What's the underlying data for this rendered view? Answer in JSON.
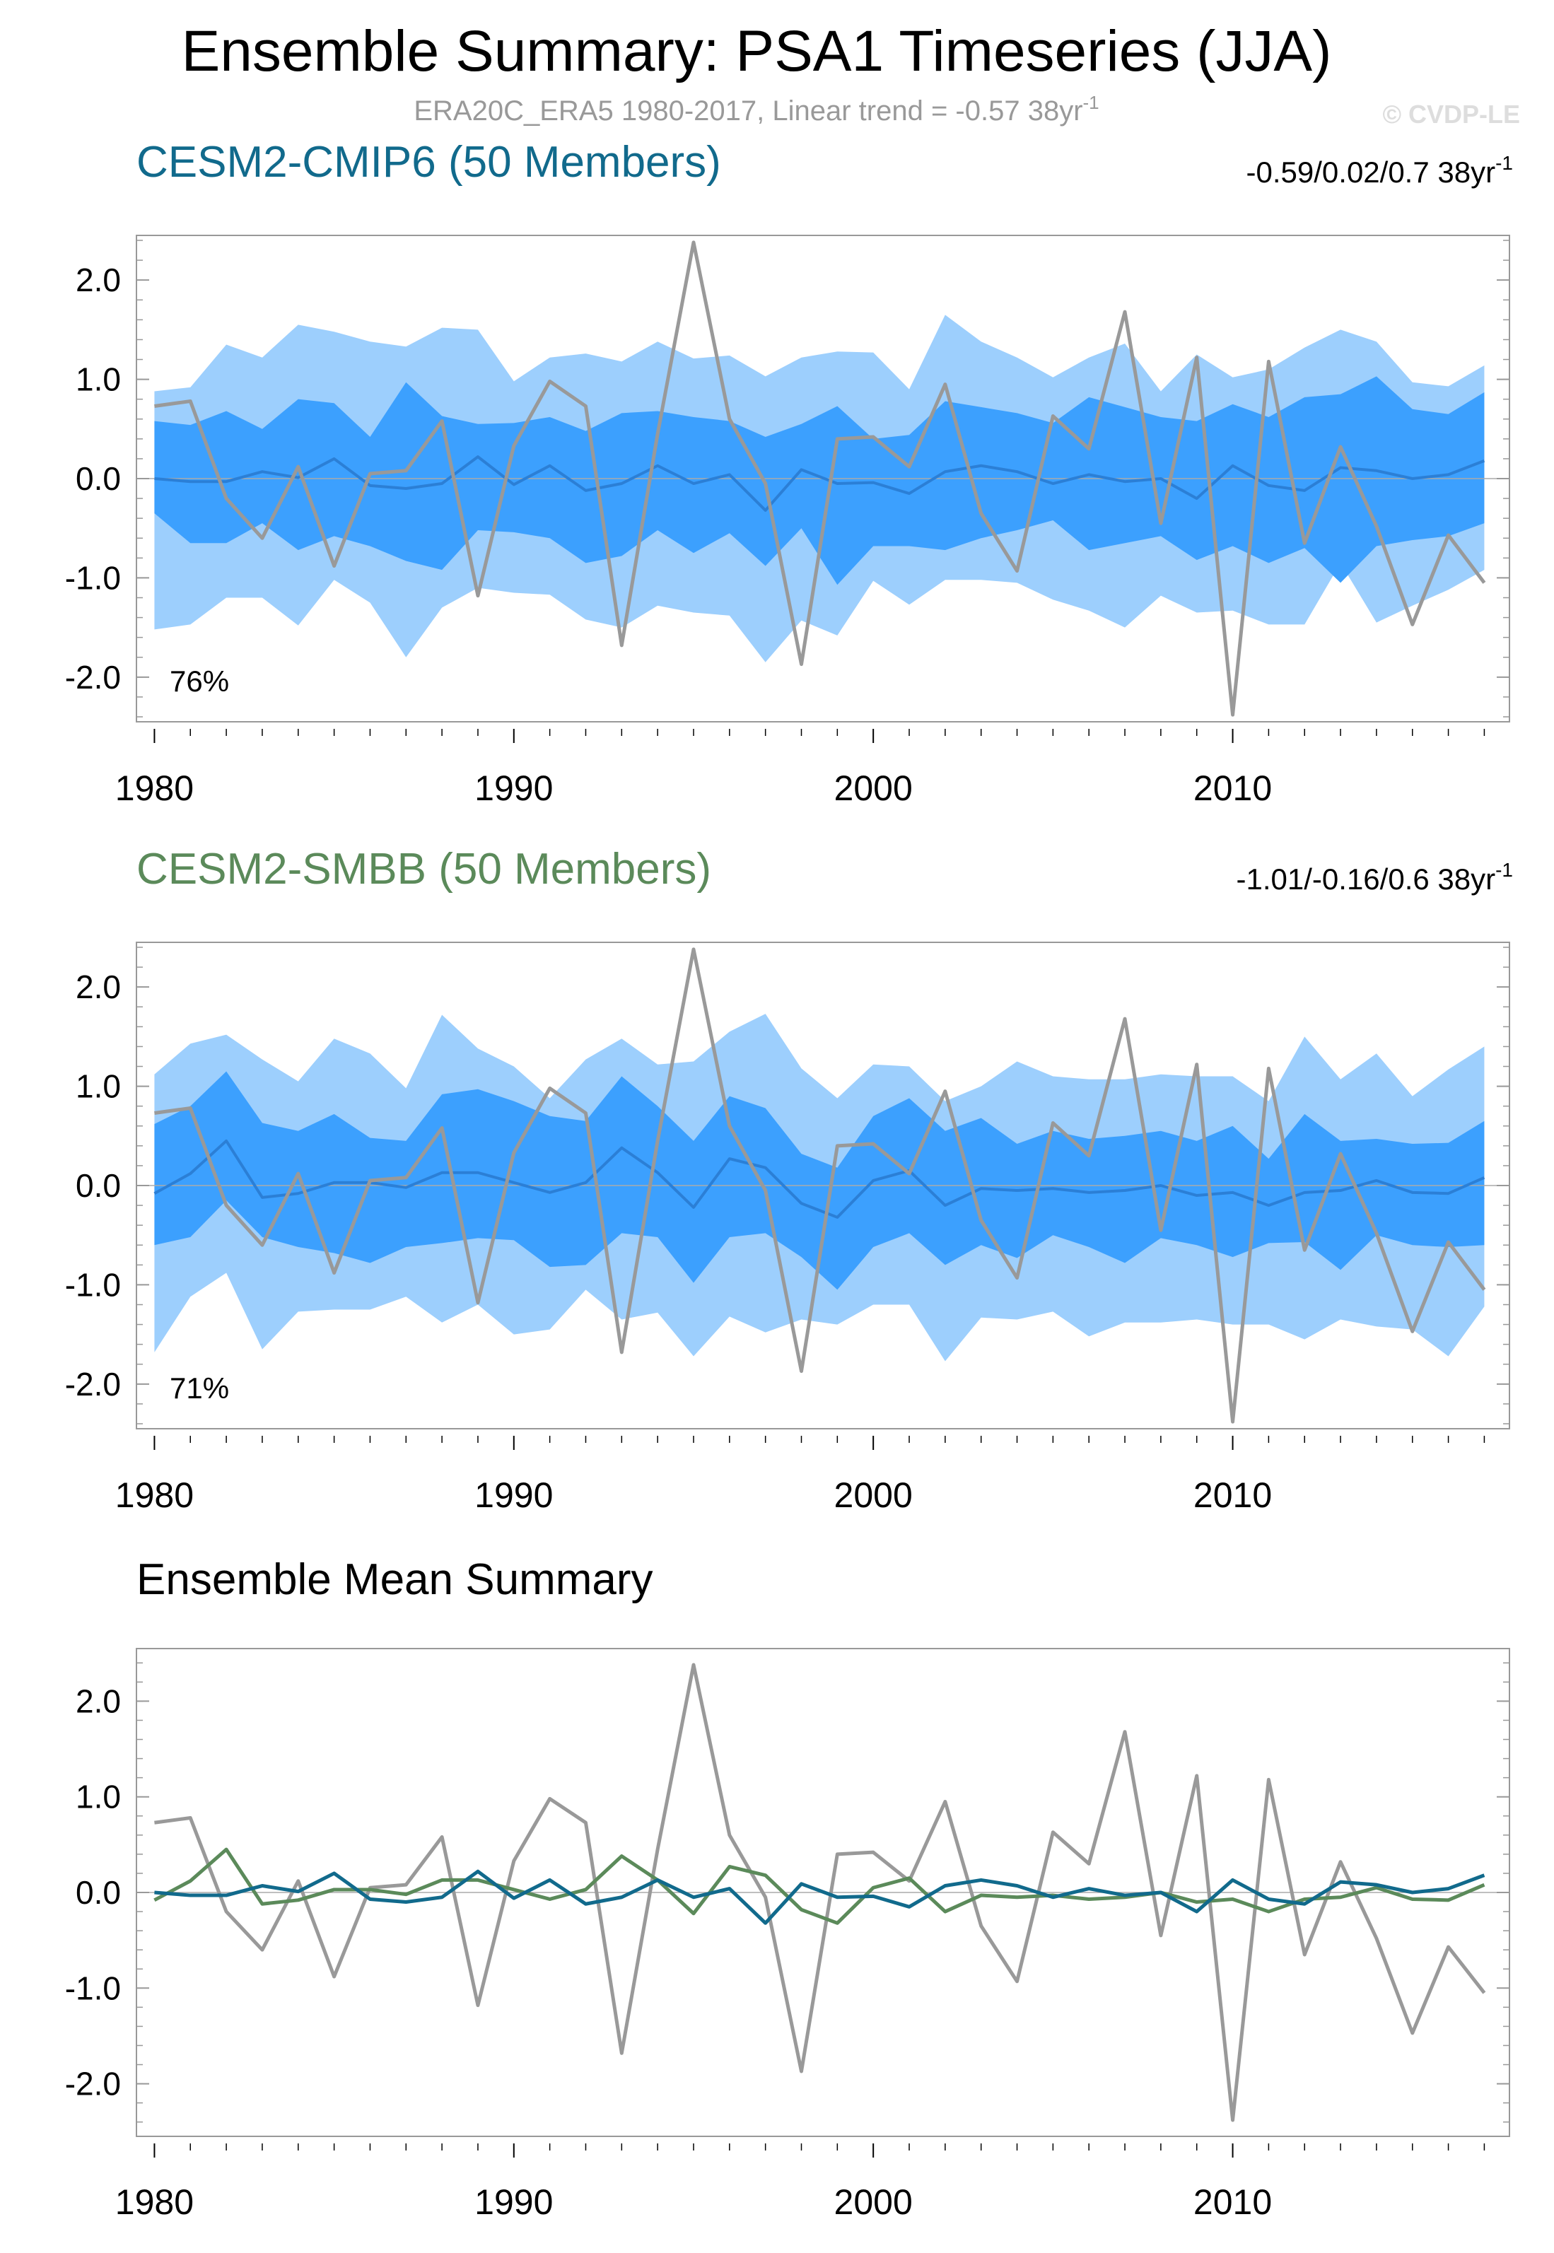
{
  "title": "Ensemble Summary: PSA1 Timeseries (JJA)",
  "subtitle": "ERA20C_ERA5 1980-2017, Linear trend = -0.57 38yr",
  "subtitle_sup": "-1",
  "credit": "© CVDP-LE",
  "colors": {
    "cmip6": "#116a8c",
    "smbb": "#5b8a5a",
    "obs": "#999999",
    "band_outer": "#9dcffd",
    "band_inner": "#3ca0fe",
    "mean_line": "#2b7fd6"
  },
  "chart_data": [
    {
      "type": "area",
      "panel": "CESM2-CMIP6",
      "title": "CESM2-CMIP6 (50 Members)",
      "trend_text": "-0.59/0.02/0.7 38yr",
      "trend_sup": "-1",
      "percent_label": "76%",
      "x": [
        1980,
        1981,
        1982,
        1983,
        1984,
        1985,
        1986,
        1987,
        1988,
        1989,
        1990,
        1991,
        1992,
        1993,
        1994,
        1995,
        1996,
        1997,
        1998,
        1999,
        2000,
        2001,
        2002,
        2003,
        2004,
        2005,
        2006,
        2007,
        2008,
        2009,
        2010,
        2011,
        2012,
        2013,
        2014,
        2015,
        2016,
        2017
      ],
      "xticks": [
        1980,
        1990,
        2000,
        2010
      ],
      "xlim": [
        1979.5,
        2017.7
      ],
      "ylim": [
        -2.45,
        2.45
      ],
      "yticks": [
        2.0,
        1.0,
        0.0,
        -1.0,
        -2.0
      ],
      "ytick_labels": [
        "2.0",
        "1.0",
        "0.0",
        "-1.0",
        "-2.0"
      ],
      "series": [
        {
          "name": "upper_outer",
          "values": [
            0.88,
            0.92,
            1.35,
            1.22,
            1.55,
            1.48,
            1.38,
            1.33,
            1.52,
            1.5,
            0.98,
            1.22,
            1.26,
            1.18,
            1.38,
            1.21,
            1.24,
            1.03,
            1.22,
            1.28,
            1.27,
            0.9,
            1.65,
            1.38,
            1.22,
            1.02,
            1.22,
            1.36,
            0.88,
            1.25,
            1.02,
            1.1,
            1.32,
            1.5,
            1.38,
            0.97,
            0.93,
            1.14
          ]
        },
        {
          "name": "upper_inner",
          "values": [
            0.58,
            0.54,
            0.68,
            0.5,
            0.8,
            0.76,
            0.42,
            0.97,
            0.63,
            0.55,
            0.56,
            0.62,
            0.48,
            0.66,
            0.68,
            0.62,
            0.58,
            0.42,
            0.55,
            0.73,
            0.4,
            0.44,
            0.78,
            0.72,
            0.66,
            0.56,
            0.82,
            0.72,
            0.62,
            0.58,
            0.75,
            0.62,
            0.82,
            0.85,
            1.03,
            0.7,
            0.65,
            0.87
          ]
        },
        {
          "name": "lower_inner",
          "values": [
            -0.35,
            -0.65,
            -0.65,
            -0.45,
            -0.72,
            -0.58,
            -0.68,
            -0.83,
            -0.92,
            -0.52,
            -0.54,
            -0.6,
            -0.85,
            -0.78,
            -0.52,
            -0.75,
            -0.55,
            -0.88,
            -0.5,
            -1.07,
            -0.68,
            -0.68,
            -0.72,
            -0.6,
            -0.52,
            -0.42,
            -0.72,
            -0.65,
            -0.58,
            -0.82,
            -0.68,
            -0.85,
            -0.7,
            -1.05,
            -0.68,
            -0.62,
            -0.58,
            -0.45
          ]
        },
        {
          "name": "lower_outer",
          "values": [
            -1.52,
            -1.47,
            -1.2,
            -1.2,
            -1.48,
            -1.02,
            -1.25,
            -1.8,
            -1.3,
            -1.1,
            -1.15,
            -1.17,
            -1.42,
            -1.5,
            -1.28,
            -1.35,
            -1.38,
            -1.85,
            -1.43,
            -1.58,
            -1.03,
            -1.27,
            -1.02,
            -1.02,
            -1.05,
            -1.22,
            -1.33,
            -1.5,
            -1.18,
            -1.35,
            -1.33,
            -1.47,
            -1.47,
            -0.85,
            -1.45,
            -1.28,
            -1.12,
            -0.92
          ]
        },
        {
          "name": "ensemble_mean",
          "values": [
            0.0,
            -0.03,
            -0.03,
            0.07,
            0.01,
            0.2,
            -0.07,
            -0.1,
            -0.05,
            0.22,
            -0.06,
            0.13,
            -0.12,
            -0.05,
            0.13,
            -0.05,
            0.04,
            -0.32,
            0.09,
            -0.05,
            -0.04,
            -0.15,
            0.07,
            0.13,
            0.07,
            -0.05,
            0.04,
            -0.03,
            0.0,
            -0.2,
            0.13,
            -0.07,
            -0.12,
            0.11,
            0.08,
            0.0,
            0.04,
            0.18
          ]
        },
        {
          "name": "observations",
          "values": [
            0.73,
            0.78,
            -0.2,
            -0.6,
            0.12,
            -0.88,
            0.05,
            0.08,
            0.58,
            -1.18,
            0.33,
            0.98,
            0.73,
            -1.68,
            0.45,
            2.38,
            0.6,
            -0.05,
            -1.87,
            0.4,
            0.42,
            0.12,
            0.95,
            -0.35,
            -0.93,
            0.63,
            0.3,
            1.68,
            -0.45,
            1.22,
            -2.38,
            1.18,
            -0.65,
            0.32,
            -0.48,
            -1.47,
            -0.57,
            -1.05
          ]
        }
      ]
    },
    {
      "type": "area",
      "panel": "CESM2-SMBB",
      "title": "CESM2-SMBB (50 Members)",
      "trend_text": "-1.01/-0.16/0.6 38yr",
      "trend_sup": "-1",
      "percent_label": "71%",
      "x": [
        1980,
        1981,
        1982,
        1983,
        1984,
        1985,
        1986,
        1987,
        1988,
        1989,
        1990,
        1991,
        1992,
        1993,
        1994,
        1995,
        1996,
        1997,
        1998,
        1999,
        2000,
        2001,
        2002,
        2003,
        2004,
        2005,
        2006,
        2007,
        2008,
        2009,
        2010,
        2011,
        2012,
        2013,
        2014,
        2015,
        2016,
        2017
      ],
      "xticks": [
        1980,
        1990,
        2000,
        2010
      ],
      "xlim": [
        1979.5,
        2017.7
      ],
      "ylim": [
        -2.45,
        2.45
      ],
      "yticks": [
        2.0,
        1.0,
        0.0,
        -1.0,
        -2.0
      ],
      "ytick_labels": [
        "2.0",
        "1.0",
        "0.0",
        "-1.0",
        "-2.0"
      ],
      "series": [
        {
          "name": "upper_outer",
          "values": [
            1.12,
            1.43,
            1.52,
            1.27,
            1.05,
            1.48,
            1.33,
            0.98,
            1.72,
            1.38,
            1.2,
            0.88,
            1.27,
            1.48,
            1.22,
            1.25,
            1.55,
            1.73,
            1.18,
            0.88,
            1.22,
            1.2,
            0.85,
            1.0,
            1.25,
            1.1,
            1.07,
            1.07,
            1.12,
            1.1,
            1.1,
            0.85,
            1.5,
            1.07,
            1.33,
            0.9,
            1.17,
            1.4
          ]
        },
        {
          "name": "upper_inner",
          "values": [
            0.62,
            0.8,
            1.15,
            0.63,
            0.55,
            0.72,
            0.48,
            0.45,
            0.92,
            0.97,
            0.85,
            0.7,
            0.65,
            1.1,
            0.8,
            0.45,
            0.9,
            0.78,
            0.32,
            0.18,
            0.7,
            0.88,
            0.55,
            0.68,
            0.42,
            0.55,
            0.47,
            0.5,
            0.55,
            0.45,
            0.6,
            0.27,
            0.72,
            0.45,
            0.47,
            0.42,
            0.43,
            0.65
          ]
        },
        {
          "name": "lower_inner",
          "values": [
            -0.6,
            -0.52,
            -0.15,
            -0.52,
            -0.62,
            -0.68,
            -0.78,
            -0.62,
            -0.58,
            -0.53,
            -0.55,
            -0.82,
            -0.8,
            -0.48,
            -0.52,
            -0.98,
            -0.52,
            -0.48,
            -0.72,
            -1.05,
            -0.62,
            -0.48,
            -0.8,
            -0.6,
            -0.73,
            -0.5,
            -0.62,
            -0.78,
            -0.53,
            -0.6,
            -0.72,
            -0.58,
            -0.57,
            -0.85,
            -0.5,
            -0.6,
            -0.62,
            -0.6
          ]
        },
        {
          "name": "lower_outer",
          "values": [
            -1.68,
            -1.12,
            -0.88,
            -1.65,
            -1.27,
            -1.25,
            -1.25,
            -1.12,
            -1.38,
            -1.2,
            -1.5,
            -1.45,
            -1.05,
            -1.35,
            -1.28,
            -1.72,
            -1.32,
            -1.48,
            -1.35,
            -1.4,
            -1.2,
            -1.2,
            -1.77,
            -1.33,
            -1.35,
            -1.27,
            -1.52,
            -1.38,
            -1.38,
            -1.35,
            -1.4,
            -1.4,
            -1.55,
            -1.35,
            -1.42,
            -1.45,
            -1.72,
            -1.22
          ]
        },
        {
          "name": "ensemble_mean",
          "values": [
            -0.08,
            0.12,
            0.45,
            -0.12,
            -0.08,
            0.03,
            0.03,
            -0.02,
            0.13,
            0.13,
            0.03,
            -0.07,
            0.03,
            0.38,
            0.13,
            -0.22,
            0.27,
            0.18,
            -0.18,
            -0.32,
            0.05,
            0.15,
            -0.2,
            -0.03,
            -0.05,
            -0.03,
            -0.07,
            -0.05,
            0.0,
            -0.1,
            -0.07,
            -0.2,
            -0.07,
            -0.05,
            0.05,
            -0.07,
            -0.08,
            0.08
          ]
        },
        {
          "name": "observations",
          "values": [
            0.73,
            0.78,
            -0.2,
            -0.6,
            0.12,
            -0.88,
            0.05,
            0.08,
            0.58,
            -1.18,
            0.33,
            0.98,
            0.73,
            -1.68,
            0.45,
            2.38,
            0.6,
            -0.05,
            -1.87,
            0.4,
            0.42,
            0.12,
            0.95,
            -0.35,
            -0.93,
            0.63,
            0.3,
            1.68,
            -0.45,
            1.22,
            -2.38,
            1.18,
            -0.65,
            0.32,
            -0.48,
            -1.47,
            -0.57,
            -1.05
          ]
        }
      ]
    },
    {
      "type": "line",
      "panel": "Ensemble Mean Summary",
      "title": "Ensemble Mean Summary",
      "x": [
        1980,
        1981,
        1982,
        1983,
        1984,
        1985,
        1986,
        1987,
        1988,
        1989,
        1990,
        1991,
        1992,
        1993,
        1994,
        1995,
        1996,
        1997,
        1998,
        1999,
        2000,
        2001,
        2002,
        2003,
        2004,
        2005,
        2006,
        2007,
        2008,
        2009,
        2010,
        2011,
        2012,
        2013,
        2014,
        2015,
        2016,
        2017
      ],
      "xticks": [
        1980,
        1990,
        2000,
        2010
      ],
      "xlim": [
        1979.5,
        2017.7
      ],
      "ylim": [
        -2.55,
        2.55
      ],
      "yticks": [
        2.0,
        1.0,
        0.0,
        -1.0,
        -2.0
      ],
      "ytick_labels": [
        "2.0",
        "1.0",
        "0.0",
        "-1.0",
        "-2.0"
      ],
      "series": [
        {
          "name": "CESM2-CMIP6",
          "values": [
            0.0,
            -0.03,
            -0.03,
            0.07,
            0.01,
            0.2,
            -0.07,
            -0.1,
            -0.05,
            0.22,
            -0.06,
            0.13,
            -0.12,
            -0.05,
            0.13,
            -0.05,
            0.04,
            -0.32,
            0.09,
            -0.05,
            -0.04,
            -0.15,
            0.07,
            0.13,
            0.07,
            -0.05,
            0.04,
            -0.03,
            0.0,
            -0.2,
            0.13,
            -0.07,
            -0.12,
            0.11,
            0.08,
            0.0,
            0.04,
            0.18
          ]
        },
        {
          "name": "CESM2-SMBB",
          "values": [
            -0.08,
            0.12,
            0.45,
            -0.12,
            -0.08,
            0.03,
            0.03,
            -0.02,
            0.13,
            0.13,
            0.03,
            -0.07,
            0.03,
            0.38,
            0.13,
            -0.22,
            0.27,
            0.18,
            -0.18,
            -0.32,
            0.05,
            0.15,
            -0.2,
            -0.03,
            -0.05,
            -0.03,
            -0.07,
            -0.05,
            0.0,
            -0.1,
            -0.07,
            -0.2,
            -0.07,
            -0.05,
            0.05,
            -0.07,
            -0.08,
            0.08
          ]
        },
        {
          "name": "observations",
          "values": [
            0.73,
            0.78,
            -0.2,
            -0.6,
            0.12,
            -0.88,
            0.05,
            0.08,
            0.58,
            -1.18,
            0.33,
            0.98,
            0.73,
            -1.68,
            0.45,
            2.38,
            0.6,
            -0.05,
            -1.87,
            0.4,
            0.42,
            0.12,
            0.95,
            -0.35,
            -0.93,
            0.63,
            0.3,
            1.68,
            -0.45,
            1.22,
            -2.38,
            1.18,
            -0.65,
            0.32,
            -0.48,
            -1.47,
            -0.57,
            -1.05
          ]
        }
      ]
    }
  ]
}
